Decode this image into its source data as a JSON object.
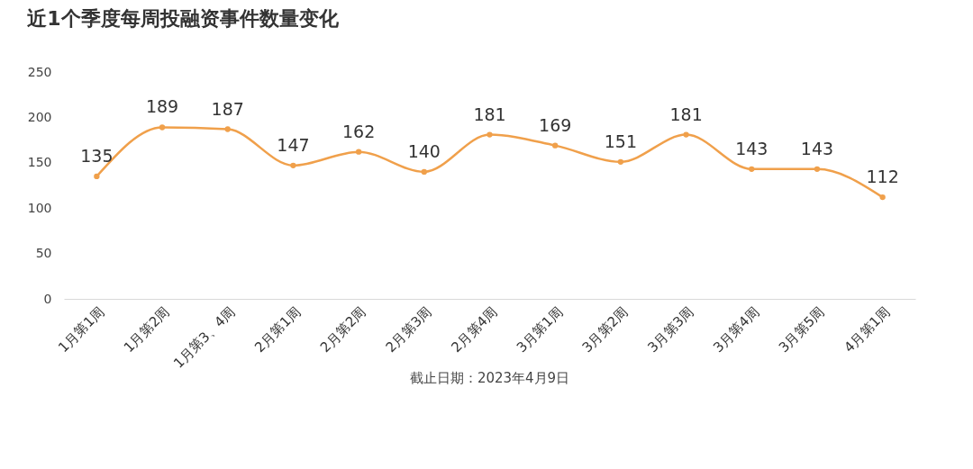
{
  "chart_data": {
    "type": "line",
    "title": "近1个季度每周投融资事件数量变化",
    "categories": [
      "1月第1周",
      "1月第2周",
      "1月第3、4周",
      "2月第1周",
      "2月第2周",
      "2月第3周",
      "2月第4周",
      "3月第1周",
      "3月第2周",
      "3月第3周",
      "3月第4周",
      "3月第5周",
      "4月第1周"
    ],
    "series": [
      {
        "color": "#f0a04b",
        "values": [
          135,
          189,
          187,
          147,
          162,
          140,
          181,
          169,
          151,
          181,
          143,
          143,
          112
        ]
      }
    ],
    "ylim": [
      0,
      250
    ],
    "yticks": [
      0,
      50,
      100,
      150,
      200,
      250
    ],
    "grid": false,
    "legend": false,
    "marker": "circle",
    "data_labels": true,
    "annotations": [
      "截止日期：2023年4月9日"
    ]
  }
}
